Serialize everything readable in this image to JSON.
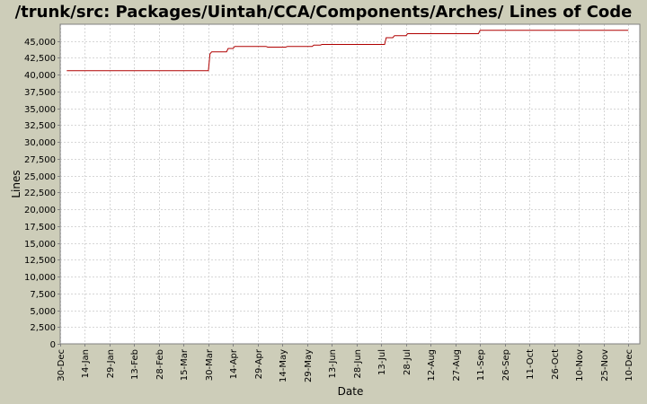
{
  "chart_data": {
    "type": "line",
    "title": "/trunk/src: Packages/Uintah/CCA/Components/Arches/ Lines of Code",
    "xlabel": "Date",
    "ylabel": "Lines",
    "x_range": [
      "2005-12-30",
      "2006-12-17"
    ],
    "ylim": [
      0,
      47500
    ],
    "y_ticks": [
      0,
      2500,
      5000,
      7500,
      10000,
      12500,
      15000,
      17500,
      20000,
      22500,
      25000,
      27500,
      30000,
      32500,
      35000,
      37500,
      40000,
      42500,
      45000
    ],
    "y_tick_labels": [
      "0",
      "2,500",
      "5,000",
      "7,500",
      "10,000",
      "12,500",
      "15,000",
      "17,500",
      "20,000",
      "22,500",
      "25,000",
      "27,500",
      "30,000",
      "32,500",
      "35,000",
      "37,500",
      "40,000",
      "42,500",
      "45,000"
    ],
    "x_ticks": [
      {
        "date": "2005-12-30",
        "label": "30-Dec"
      },
      {
        "date": "2006-01-14",
        "label": "14-Jan"
      },
      {
        "date": "2006-01-29",
        "label": "29-Jan"
      },
      {
        "date": "2006-02-13",
        "label": "13-Feb"
      },
      {
        "date": "2006-02-28",
        "label": "28-Feb"
      },
      {
        "date": "2006-03-15",
        "label": "15-Mar"
      },
      {
        "date": "2006-03-30",
        "label": "30-Mar"
      },
      {
        "date": "2006-04-14",
        "label": "14-Apr"
      },
      {
        "date": "2006-04-29",
        "label": "29-Apr"
      },
      {
        "date": "2006-05-14",
        "label": "14-May"
      },
      {
        "date": "2006-05-29",
        "label": "29-May"
      },
      {
        "date": "2006-06-13",
        "label": "13-Jun"
      },
      {
        "date": "2006-06-28",
        "label": "28-Jun"
      },
      {
        "date": "2006-07-13",
        "label": "13-Jul"
      },
      {
        "date": "2006-07-28",
        "label": "28-Jul"
      },
      {
        "date": "2006-08-12",
        "label": "12-Aug"
      },
      {
        "date": "2006-08-27",
        "label": "27-Aug"
      },
      {
        "date": "2006-09-11",
        "label": "11-Sep"
      },
      {
        "date": "2006-09-26",
        "label": "26-Sep"
      },
      {
        "date": "2006-10-11",
        "label": "11-Oct"
      },
      {
        "date": "2006-10-26",
        "label": "26-Oct"
      },
      {
        "date": "2006-11-10",
        "label": "10-Nov"
      },
      {
        "date": "2006-11-25",
        "label": "25-Nov"
      },
      {
        "date": "2006-12-10",
        "label": "10-Dec"
      }
    ],
    "grid": true,
    "series": [
      {
        "color": "#b00000",
        "points": [
          {
            "x": "2006-01-03",
            "y": 40600
          },
          {
            "x": "2006-03-30",
            "y": 40600
          },
          {
            "x": "2006-03-31",
            "y": 43100
          },
          {
            "x": "2006-04-01",
            "y": 43400
          },
          {
            "x": "2006-04-10",
            "y": 43400
          },
          {
            "x": "2006-04-11",
            "y": 43900
          },
          {
            "x": "2006-04-14",
            "y": 43900
          },
          {
            "x": "2006-04-15",
            "y": 44200
          },
          {
            "x": "2006-05-04",
            "y": 44200
          },
          {
            "x": "2006-05-05",
            "y": 44100
          },
          {
            "x": "2006-05-16",
            "y": 44100
          },
          {
            "x": "2006-05-17",
            "y": 44200
          },
          {
            "x": "2006-06-01",
            "y": 44200
          },
          {
            "x": "2006-06-02",
            "y": 44400
          },
          {
            "x": "2006-06-06",
            "y": 44400
          },
          {
            "x": "2006-06-07",
            "y": 44500
          },
          {
            "x": "2006-07-15",
            "y": 44500
          },
          {
            "x": "2006-07-16",
            "y": 45500
          },
          {
            "x": "2006-07-20",
            "y": 45500
          },
          {
            "x": "2006-07-21",
            "y": 45800
          },
          {
            "x": "2006-07-28",
            "y": 45800
          },
          {
            "x": "2006-07-29",
            "y": 46100
          },
          {
            "x": "2006-09-10",
            "y": 46100
          },
          {
            "x": "2006-09-11",
            "y": 46600
          },
          {
            "x": "2006-12-10",
            "y": 46600
          }
        ]
      }
    ]
  }
}
